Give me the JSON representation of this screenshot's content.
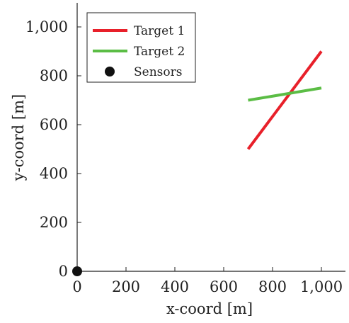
{
  "chart_data": {
    "type": "line",
    "xlabel": "x-coord [m]",
    "ylabel": "y-coord [m]",
    "xlim": [
      0,
      1100
    ],
    "ylim": [
      0,
      1100
    ],
    "x_ticks": [
      {
        "value": 0,
        "label": "0"
      },
      {
        "value": 200,
        "label": "200"
      },
      {
        "value": 400,
        "label": "400"
      },
      {
        "value": 600,
        "label": "600"
      },
      {
        "value": 800,
        "label": "800"
      },
      {
        "value": 1000,
        "label": "1,000"
      }
    ],
    "y_ticks": [
      {
        "value": 0,
        "label": "0"
      },
      {
        "value": 200,
        "label": "200"
      },
      {
        "value": 400,
        "label": "400"
      },
      {
        "value": 600,
        "label": "600"
      },
      {
        "value": 800,
        "label": "800"
      },
      {
        "value": 1000,
        "label": "1,000"
      }
    ],
    "grid": false,
    "legend_position": "top-left",
    "series": [
      {
        "name": "Target 1",
        "kind": "line",
        "color": "#e8202a",
        "x": [
          700,
          1000
        ],
        "y": [
          500,
          900
        ]
      },
      {
        "name": "Target 2",
        "kind": "line",
        "color": "#5bbd45",
        "x": [
          700,
          1000
        ],
        "y": [
          700,
          750
        ]
      },
      {
        "name": "Sensors",
        "kind": "scatter",
        "color": "#111111",
        "x": [
          0
        ],
        "y": [
          0
        ]
      }
    ]
  }
}
